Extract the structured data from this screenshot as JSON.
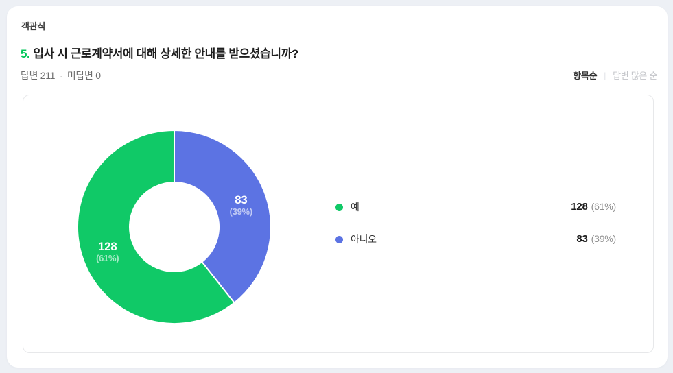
{
  "page": {
    "bg_color": "#edf0f5"
  },
  "header": {
    "question_type": "객관식",
    "question_number": "5.",
    "question_title": "입사 시 근로계약서에 대해 상세한 안내를 받으셨습니까?",
    "answered_text": "답변 211",
    "separator": "·",
    "unanswered_text": "미답변 0"
  },
  "sort": {
    "options": [
      {
        "label": "항목순",
        "active": true
      },
      {
        "label": "답변 많은 순",
        "active": false
      }
    ],
    "divider": "|"
  },
  "chart_data": {
    "type": "pie",
    "variant": "donut",
    "categories": [
      "예",
      "아니오"
    ],
    "values": [
      128,
      83
    ],
    "percents": [
      61,
      39
    ],
    "total_responses": 211,
    "legend_position": "right",
    "slices_clockwise_from_top": [
      {
        "label": "아니오",
        "value": "83",
        "percent_label": "(39%)",
        "numeric_value": 83,
        "color": "#5c73e3"
      },
      {
        "label": "예",
        "value": "128",
        "percent_label": "(61%)",
        "numeric_value": 128,
        "color": "#10c967"
      }
    ]
  },
  "legend": {
    "rows": [
      {
        "label": "예",
        "value": "128",
        "percent": "(61%)",
        "color": "#10c967"
      },
      {
        "label": "아니오",
        "value": "83",
        "percent": "(39%)",
        "color": "#5c73e3"
      }
    ]
  }
}
